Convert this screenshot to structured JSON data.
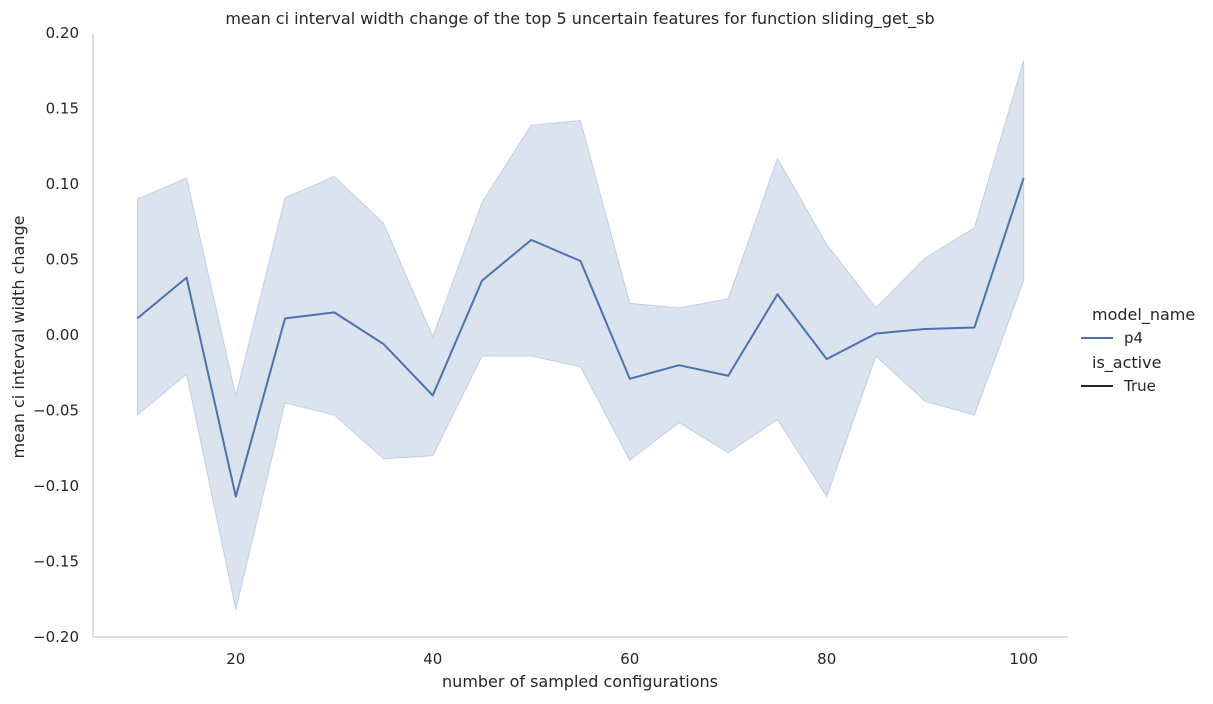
{
  "chart_data": {
    "type": "line",
    "title": "mean ci interval width change of the top 5 uncertain features for function sliding_get_sb",
    "xlabel": "number of sampled configurations",
    "ylabel": "mean ci interval width change",
    "xlim": [
      5.5,
      104.5
    ],
    "ylim": [
      -0.2,
      0.2
    ],
    "x_ticks": [
      20,
      40,
      60,
      80,
      100
    ],
    "y_ticks": [
      -0.2,
      -0.15,
      -0.1,
      -0.05,
      0.0,
      0.05,
      0.1,
      0.15,
      0.2
    ],
    "x_tick_labels": [
      "20",
      "40",
      "60",
      "80",
      "100"
    ],
    "y_tick_labels": [
      "−0.20",
      "−0.15",
      "−0.10",
      "−0.05",
      "0.00",
      "0.05",
      "0.10",
      "0.15",
      "0.20"
    ],
    "grid": false,
    "legend_position": "right",
    "legend": {
      "hue_title": "model_name",
      "style_title": "is_active",
      "entries": [
        {
          "group": "hue",
          "label": "p4",
          "color": "#4c72b0"
        },
        {
          "group": "style",
          "label": "True",
          "color": "#262626"
        }
      ]
    },
    "x": [
      10,
      15,
      20,
      25,
      30,
      35,
      40,
      45,
      50,
      55,
      60,
      65,
      70,
      75,
      80,
      85,
      90,
      95,
      100
    ],
    "series": [
      {
        "name": "p4",
        "color": "#4c72b0",
        "band_color": "#4c72b0",
        "values": [
          0.011,
          0.038,
          -0.107,
          0.011,
          0.015,
          -0.006,
          -0.04,
          0.036,
          0.063,
          0.049,
          -0.029,
          -0.02,
          -0.027,
          0.027,
          -0.016,
          0.001,
          0.004,
          0.005,
          0.104
        ],
        "ci_upper": [
          0.09,
          0.104,
          -0.04,
          0.091,
          0.105,
          0.074,
          -0.001,
          0.088,
          0.139,
          0.142,
          0.021,
          0.018,
          0.024,
          0.117,
          0.06,
          0.018,
          0.051,
          0.071,
          0.182
        ],
        "ci_lower": [
          -0.053,
          -0.026,
          -0.182,
          -0.045,
          -0.053,
          -0.082,
          -0.08,
          -0.014,
          -0.014,
          -0.021,
          -0.083,
          -0.058,
          -0.078,
          -0.056,
          -0.107,
          -0.014,
          -0.044,
          -0.053,
          0.036
        ]
      }
    ]
  }
}
